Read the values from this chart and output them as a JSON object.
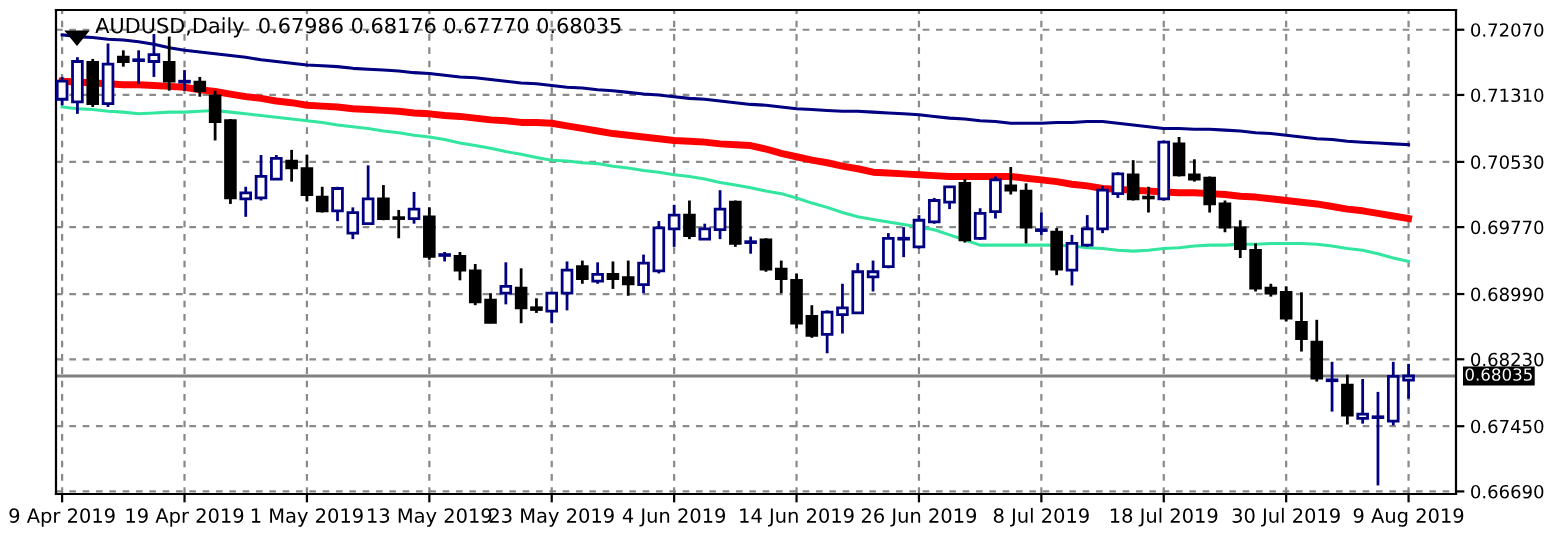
{
  "chart_data": {
    "type": "candlestick",
    "title": "AUDUSD,Daily  0.67986 0.68176 0.67770 0.68035",
    "categories": [
      "9 Apr 2019",
      null,
      null,
      null,
      null,
      null,
      null,
      null,
      "19 Apr 2019",
      null,
      null,
      null,
      null,
      null,
      null,
      null,
      "1 May 2019",
      null,
      null,
      null,
      null,
      null,
      null,
      null,
      "13 May 2019",
      null,
      null,
      null,
      null,
      null,
      null,
      null,
      "23 May 2019",
      null,
      null,
      null,
      null,
      null,
      null,
      null,
      "4 Jun 2019",
      null,
      null,
      null,
      null,
      null,
      null,
      null,
      "14 Jun 2019",
      null,
      null,
      null,
      null,
      null,
      null,
      null,
      "26 Jun 2019",
      null,
      null,
      null,
      null,
      null,
      null,
      null,
      "8 Jul 2019",
      null,
      null,
      null,
      null,
      null,
      null,
      null,
      "18 Jul 2019",
      null,
      null,
      null,
      null,
      null,
      null,
      null,
      "30 Jul 2019",
      null,
      null,
      null,
      null,
      null,
      null,
      null,
      "9 Aug 2019"
    ],
    "ohlc": [
      [
        0.7126,
        0.7152,
        0.7119,
        0.7147
      ],
      [
        0.7123,
        0.7175,
        0.7109,
        0.717
      ],
      [
        0.7169,
        0.7173,
        0.7117,
        0.7121
      ],
      [
        0.7121,
        0.7191,
        0.7117,
        0.7167
      ],
      [
        0.7175,
        0.7183,
        0.7164,
        0.717
      ],
      [
        0.7171,
        0.7183,
        0.7144,
        0.7172
      ],
      [
        0.717,
        0.7202,
        0.7152,
        0.7178
      ],
      [
        0.7169,
        0.7199,
        0.7136,
        0.7147
      ],
      [
        0.7146,
        0.716,
        0.7136,
        0.7147
      ],
      [
        0.7146,
        0.7152,
        0.7129,
        0.7136
      ],
      [
        0.713,
        0.7136,
        0.7078,
        0.71
      ],
      [
        0.7101,
        0.7103,
        0.7004,
        0.7011
      ],
      [
        0.701,
        0.7024,
        0.6989,
        0.7017
      ],
      [
        0.7011,
        0.7061,
        0.7008,
        0.7036
      ],
      [
        0.7033,
        0.7061,
        0.7032,
        0.7057
      ],
      [
        0.7054,
        0.7067,
        0.703,
        0.7046
      ],
      [
        0.7045,
        0.7061,
        0.7007,
        0.7015
      ],
      [
        0.7012,
        0.7024,
        0.6994,
        0.6996
      ],
      [
        0.6996,
        0.7024,
        0.6984,
        0.7022
      ],
      [
        0.697,
        0.7,
        0.6963,
        0.6994
      ],
      [
        0.6981,
        0.7049,
        0.698,
        0.701
      ],
      [
        0.701,
        0.7026,
        0.6985,
        0.6987
      ],
      [
        0.6988,
        0.6997,
        0.6964,
        0.6987
      ],
      [
        0.6987,
        0.7018,
        0.6981,
        0.6998
      ],
      [
        0.6989,
        0.7,
        0.6939,
        0.6943
      ],
      [
        0.6944,
        0.6948,
        0.6937,
        0.6945
      ],
      [
        0.6943,
        0.6948,
        0.6915,
        0.6927
      ],
      [
        0.6926,
        0.6934,
        0.6886,
        0.689
      ],
      [
        0.6892,
        0.69,
        0.6865,
        0.6866
      ],
      [
        0.69,
        0.6936,
        0.6887,
        0.6908
      ],
      [
        0.6906,
        0.6929,
        0.6865,
        0.6883
      ],
      [
        0.6883,
        0.6894,
        0.6877,
        0.6881
      ],
      [
        0.6879,
        0.6901,
        0.6865,
        0.69
      ],
      [
        0.69,
        0.6937,
        0.688,
        0.6927
      ],
      [
        0.6931,
        0.6938,
        0.6911,
        0.6917
      ],
      [
        0.6914,
        0.6936,
        0.6911,
        0.6922
      ],
      [
        0.6922,
        0.6937,
        0.6905,
        0.6917
      ],
      [
        0.6918,
        0.6938,
        0.6897,
        0.6911
      ],
      [
        0.691,
        0.6945,
        0.69,
        0.6935
      ],
      [
        0.6926,
        0.6984,
        0.6923,
        0.6976
      ],
      [
        0.6975,
        0.7003,
        0.6954,
        0.6991
      ],
      [
        0.6991,
        0.7008,
        0.6963,
        0.6967
      ],
      [
        0.6963,
        0.6981,
        0.6962,
        0.6975
      ],
      [
        0.6974,
        0.702,
        0.6963,
        0.6998
      ],
      [
        0.7006,
        0.7008,
        0.6954,
        0.6958
      ],
      [
        0.6959,
        0.6966,
        0.6946,
        0.696
      ],
      [
        0.6962,
        0.6964,
        0.6925,
        0.6928
      ],
      [
        0.6928,
        0.6938,
        0.69,
        0.6917
      ],
      [
        0.6915,
        0.6923,
        0.6859,
        0.6865
      ],
      [
        0.6873,
        0.6886,
        0.6848,
        0.6851
      ],
      [
        0.6852,
        0.688,
        0.683,
        0.6878
      ],
      [
        0.6875,
        0.6911,
        0.6853,
        0.6883
      ],
      [
        0.6877,
        0.6935,
        0.6876,
        0.6925
      ],
      [
        0.6919,
        0.6938,
        0.6902,
        0.6925
      ],
      [
        0.6931,
        0.697,
        0.6929,
        0.6964
      ],
      [
        0.6963,
        0.6977,
        0.6942,
        0.6964
      ],
      [
        0.6954,
        0.6991,
        0.6952,
        0.6985
      ],
      [
        0.6983,
        0.7011,
        0.6981,
        0.7008
      ],
      [
        0.7006,
        0.7025,
        0.6998,
        0.7024
      ],
      [
        0.7028,
        0.7033,
        0.6959,
        0.6962
      ],
      [
        0.6964,
        0.6999,
        0.6962,
        0.6993
      ],
      [
        0.6995,
        0.7036,
        0.6987,
        0.7032
      ],
      [
        0.7025,
        0.7047,
        0.7015,
        0.702
      ],
      [
        0.7019,
        0.7028,
        0.6958,
        0.6977
      ],
      [
        0.6973,
        0.6994,
        0.6968,
        0.6974
      ],
      [
        0.6971,
        0.6976,
        0.6921,
        0.6928
      ],
      [
        0.6927,
        0.6968,
        0.6909,
        0.6958
      ],
      [
        0.6956,
        0.6991,
        0.6954,
        0.6975
      ],
      [
        0.6975,
        0.7025,
        0.697,
        0.702
      ],
      [
        0.7016,
        0.7041,
        0.7011,
        0.7039
      ],
      [
        0.7038,
        0.7055,
        0.7008,
        0.701
      ],
      [
        0.7012,
        0.7024,
        0.6994,
        0.7011
      ],
      [
        0.701,
        0.7078,
        0.7008,
        0.7076
      ],
      [
        0.7074,
        0.7082,
        0.7036,
        0.7038
      ],
      [
        0.7038,
        0.7056,
        0.703,
        0.7033
      ],
      [
        0.7034,
        0.7036,
        0.6994,
        0.7004
      ],
      [
        0.7004,
        0.7008,
        0.6971,
        0.6977
      ],
      [
        0.6976,
        0.6985,
        0.6941,
        0.6952
      ],
      [
        0.695,
        0.6958,
        0.6902,
        0.6906
      ],
      [
        0.6906,
        0.6911,
        0.6896,
        0.69
      ],
      [
        0.6901,
        0.6908,
        0.6867,
        0.6871
      ],
      [
        0.6866,
        0.6901,
        0.6832,
        0.6847
      ],
      [
        0.6843,
        0.6869,
        0.6797,
        0.6801
      ],
      [
        0.6798,
        0.682,
        0.6762,
        0.6799
      ],
      [
        0.6793,
        0.6805,
        0.6747,
        0.6758
      ],
      [
        0.6754,
        0.68,
        0.6748,
        0.6759
      ],
      [
        0.6755,
        0.6785,
        0.6676,
        0.6756
      ],
      [
        0.6751,
        0.682,
        0.6746,
        0.6803
      ],
      [
        0.67986,
        0.68176,
        0.6777,
        0.68035
      ]
    ],
    "colors": [
      "#000080",
      "#000080",
      "#000000",
      "#000080",
      "#000000",
      "#000080",
      "#000080",
      "#000000",
      "#000080",
      "#000000",
      "#000000",
      "#000000",
      "#000080",
      "#000080",
      "#000080",
      "#000000",
      "#000000",
      "#000000",
      "#000080",
      "#000080",
      "#000080",
      "#000000",
      "#000000",
      "#000080",
      "#000000",
      "#000080",
      "#000000",
      "#000000",
      "#000000",
      "#000080",
      "#000000",
      "#000000",
      "#000080",
      "#000080",
      "#000000",
      "#000080",
      "#000000",
      "#000000",
      "#000080",
      "#000080",
      "#000080",
      "#000000",
      "#000080",
      "#000080",
      "#000000",
      "#000080",
      "#000000",
      "#000000",
      "#000000",
      "#000000",
      "#000080",
      "#000080",
      "#000080",
      "#000080",
      "#000080",
      "#000080",
      "#000080",
      "#000080",
      "#000080",
      "#000000",
      "#000080",
      "#000080",
      "#000000",
      "#000000",
      "#000080",
      "#000000",
      "#000080",
      "#000080",
      "#000080",
      "#000080",
      "#000000",
      "#000000",
      "#000080",
      "#000000",
      "#000000",
      "#000000",
      "#000000",
      "#000000",
      "#000000",
      "#000000",
      "#000000",
      "#000000",
      "#000000",
      "#000080",
      "#000000",
      "#000080",
      "#000080",
      "#000080",
      "#000080"
    ],
    "series": [
      {
        "type": "line",
        "color": "#000080",
        "values": [
          0.7201,
          0.7199,
          0.7198,
          0.7196,
          0.7195,
          0.7193,
          0.719,
          0.7186,
          0.7183,
          0.7181,
          0.7179,
          0.7177,
          0.7175,
          0.7172,
          0.717,
          0.7168,
          0.7166,
          0.7165,
          0.7164,
          0.7162,
          0.7161,
          0.716,
          0.7159,
          0.7157,
          0.7156,
          0.7154,
          0.7152,
          0.7151,
          0.7149,
          0.7147,
          0.7145,
          0.7144,
          0.7142,
          0.714,
          0.7139,
          0.7137,
          0.7136,
          0.7134,
          0.7132,
          0.7131,
          0.7129,
          0.7127,
          0.7126,
          0.7124,
          0.7122,
          0.712,
          0.7119,
          0.7117,
          0.7115,
          0.7114,
          0.7113,
          0.7112,
          0.7112,
          0.7111,
          0.711,
          0.7109,
          0.7108,
          0.7106,
          0.7104,
          0.7103,
          0.7101,
          0.71,
          0.7098,
          0.7098,
          0.7098,
          0.7099,
          0.7099,
          0.71,
          0.71,
          0.7098,
          0.7096,
          0.7094,
          0.7092,
          0.7092,
          0.7091,
          0.7091,
          0.709,
          0.7089,
          0.7087,
          0.7086,
          0.7084,
          0.7082,
          0.708,
          0.7079,
          0.7077,
          0.7076,
          0.7075,
          0.7074,
          0.7073
        ]
      },
      {
        "type": "line",
        "color": "#ff0000",
        "values": [
          0.7147,
          0.7146,
          0.7145,
          0.7144,
          0.7143,
          0.7143,
          0.7142,
          0.7141,
          0.714,
          0.7137,
          0.7135,
          0.7132,
          0.7129,
          0.7127,
          0.7124,
          0.7122,
          0.7119,
          0.7118,
          0.7117,
          0.7115,
          0.7114,
          0.7113,
          0.7112,
          0.711,
          0.7109,
          0.7107,
          0.7106,
          0.7104,
          0.7102,
          0.7101,
          0.7099,
          0.7099,
          0.7098,
          0.7095,
          0.7092,
          0.7089,
          0.7086,
          0.7084,
          0.7082,
          0.708,
          0.7078,
          0.7077,
          0.7076,
          0.7074,
          0.7073,
          0.7072,
          0.7068,
          0.7063,
          0.7059,
          0.7055,
          0.7052,
          0.7048,
          0.7045,
          0.7041,
          0.704,
          0.7039,
          0.7038,
          0.7037,
          0.7036,
          0.7036,
          0.7036,
          0.7036,
          0.7036,
          0.7034,
          0.7032,
          0.703,
          0.7027,
          0.7025,
          0.7022,
          0.7021,
          0.702,
          0.7019,
          0.7018,
          0.7017,
          0.7017,
          0.7016,
          0.7015,
          0.7013,
          0.7012,
          0.701,
          0.7008,
          0.7006,
          0.7004,
          0.7001,
          0.6998,
          0.6996,
          0.6993,
          0.699,
          0.6987
        ]
      },
      {
        "type": "line",
        "color": "#33e6a0",
        "values": [
          0.7117,
          0.7115,
          0.7114,
          0.7112,
          0.7111,
          0.7109,
          0.711,
          0.7111,
          0.7111,
          0.7112,
          0.7113,
          0.7111,
          0.7109,
          0.7107,
          0.7105,
          0.7103,
          0.7101,
          0.7099,
          0.7096,
          0.7094,
          0.7092,
          0.7089,
          0.7087,
          0.7084,
          0.7082,
          0.7079,
          0.7075,
          0.7072,
          0.7069,
          0.7065,
          0.7062,
          0.7058,
          0.7055,
          0.7054,
          0.7052,
          0.7051,
          0.7048,
          0.7046,
          0.7043,
          0.7041,
          0.7038,
          0.7036,
          0.7033,
          0.7029,
          0.7026,
          0.7023,
          0.7019,
          0.7016,
          0.7011,
          0.7005,
          0.7,
          0.6994,
          0.6989,
          0.6986,
          0.6983,
          0.698,
          0.6977,
          0.6974,
          0.6968,
          0.6962,
          0.6956,
          0.6956,
          0.6956,
          0.6956,
          0.6956,
          0.6956,
          0.6955,
          0.6953,
          0.6952,
          0.695,
          0.6949,
          0.695,
          0.6952,
          0.6953,
          0.6955,
          0.6956,
          0.6956,
          0.6957,
          0.6957,
          0.6958,
          0.6958,
          0.6958,
          0.6957,
          0.6955,
          0.6952,
          0.695,
          0.6946,
          0.6941,
          0.6937
        ]
      }
    ],
    "ylim": [
      0.6666,
      0.723
    ],
    "yticks": [
      {
        "value": 0.6669,
        "label": "0.66690"
      },
      {
        "value": 0.6745,
        "label": "0.67450"
      },
      {
        "value": 0.6823,
        "label": "0.68230"
      },
      {
        "value": 0.6899,
        "label": "0.68990"
      },
      {
        "value": 0.6977,
        "label": "0.69770"
      },
      {
        "value": 0.7053,
        "label": "0.70530"
      },
      {
        "value": 0.7131,
        "label": "0.71310"
      },
      {
        "value": 0.7207,
        "label": "0.72070"
      }
    ],
    "ref_lines": [
      {
        "axis": "y",
        "value": 0.68035,
        "label": "0.68035",
        "color": "#808080"
      }
    ],
    "grid": true
  }
}
